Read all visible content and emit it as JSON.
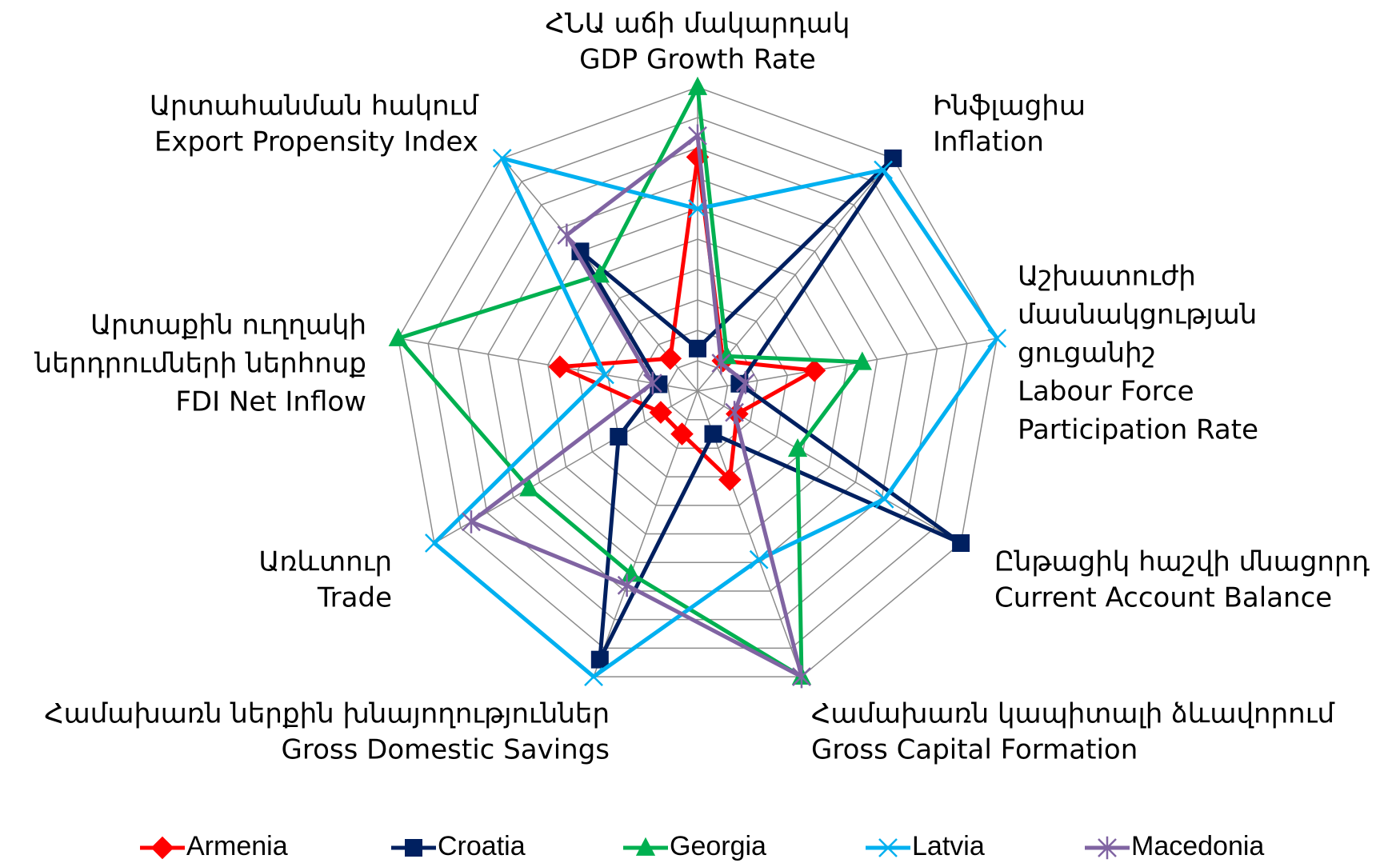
{
  "chart_data": {
    "type": "radar",
    "categories": [
      [
        "ՀՆԱ աճի մակարդակ",
        "GDP Growth Rate"
      ],
      [
        "Ինֆլացիա",
        "Inflation"
      ],
      [
        "Աշխատուժի",
        "մասնակցության",
        "ցուցանիշ",
        "Labour Force",
        "Participation Rate"
      ],
      [
        "Ընթացիկ հաշվի մնացորդ",
        "Current Account Balance"
      ],
      [
        "Համախառն կապիտալի ձևավորում",
        "Gross Capital Formation"
      ],
      [
        "Համախառն ներքին խնայողություններ",
        "Gross Domestic Savings"
      ],
      [
        "Առևտուր",
        "Trade"
      ],
      [
        "Արտաքին ուղղակի",
        "ներդրումների ներհոսք",
        "FDI Net Inflow"
      ],
      [
        "Արտահանման հակում",
        "Export Propensity Index"
      ]
    ],
    "series": [
      {
        "name": "Armenia",
        "color": "#ff0000",
        "marker": "diamond",
        "values": [
          7.7,
          1.3,
          3.9,
          1.5,
          3.1,
          1.5,
          1.4,
          4.6,
          1.4
        ]
      },
      {
        "name": "Croatia",
        "color": "#002060",
        "marker": "square",
        "values": [
          1.4,
          10,
          1.4,
          10,
          1.5,
          9.4,
          3.0,
          1.3,
          6.0
        ]
      },
      {
        "name": "Georgia",
        "color": "#00b050",
        "marker": "triangle",
        "values": [
          10,
          1.5,
          5.5,
          3.8,
          10,
          6.4,
          6.4,
          10,
          5.0
        ]
      },
      {
        "name": "Latvia",
        "color": "#00b0f0",
        "marker": "x",
        "values": [
          6.0,
          9.5,
          10,
          7.1,
          5.9,
          10,
          10,
          3.1,
          10
        ]
      },
      {
        "name": "Macedonia",
        "color": "#8064a2",
        "marker": "star",
        "values": [
          8.4,
          1.2,
          1.6,
          1.4,
          10,
          6.8,
          8.6,
          1.5,
          6.7
        ]
      }
    ],
    "ylim": [
      0,
      10
    ],
    "yticks": [
      1,
      2,
      3,
      4,
      5,
      6,
      7,
      8,
      9,
      10
    ],
    "grid": true,
    "legend": "bottom"
  }
}
